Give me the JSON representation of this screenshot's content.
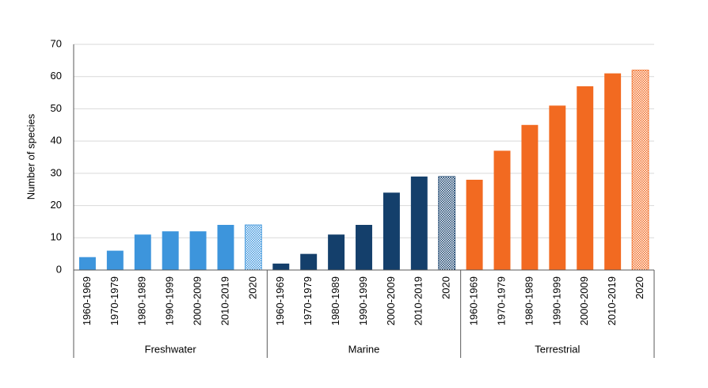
{
  "chart_data": {
    "type": "grouped_bar",
    "y_label": "Number of species",
    "categories": [
      "1960-1969",
      "1970-1979",
      "1980-1989",
      "1990-1999",
      "2000-2009",
      "2010-2019",
      "2020"
    ],
    "groups": [
      {
        "name": "Freshwater",
        "color": "#3d95dc",
        "values": [
          4,
          6,
          11,
          12,
          12,
          14,
          14
        ]
      },
      {
        "name": "Marine",
        "color": "#143f6b",
        "values": [
          2,
          5,
          11,
          14,
          24,
          29,
          29
        ]
      },
      {
        "name": "Terrestrial",
        "color": "#f26a21",
        "values": [
          28,
          37,
          45,
          51,
          57,
          61,
          62
        ]
      }
    ],
    "hatch_last_category": true,
    "ylim": [
      0,
      70
    ],
    "yticks": [
      0,
      10,
      20,
      30,
      40,
      50,
      60,
      70
    ],
    "grid": true
  }
}
